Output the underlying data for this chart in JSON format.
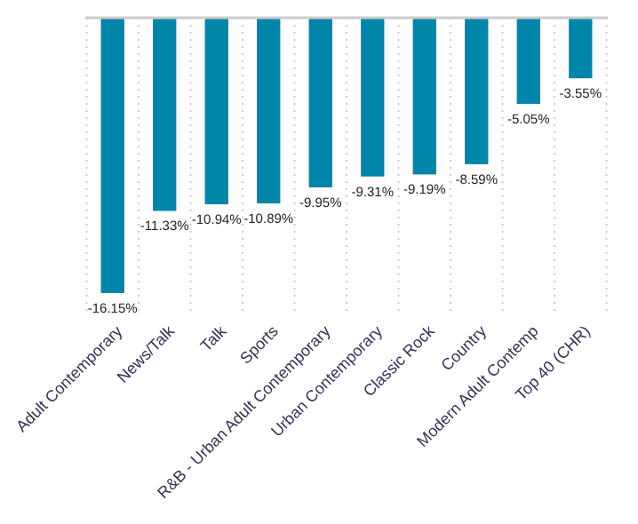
{
  "chart_data": {
    "type": "bar",
    "categories": [
      "Adult Contemporary",
      "News/Talk",
      "Talk",
      "Sports",
      "R&B - Urban Adult Contemporary",
      "Urban Contemporary",
      "Classic Rock",
      "Country",
      "Modern Adult Contemp",
      "Top 40 (CHR)"
    ],
    "values": [
      -16.15,
      -11.33,
      -10.94,
      -10.89,
      -9.95,
      -9.31,
      -9.19,
      -8.59,
      -5.05,
      -3.55
    ],
    "value_labels": [
      "-16.15%",
      "-11.33%",
      "-10.94%",
      "-10.89%",
      "-9.95%",
      "-9.31%",
      "-9.19%",
      "-8.59%",
      "-5.05%",
      "-3.55%"
    ],
    "color": "#0086a8",
    "grid": "x"
  }
}
